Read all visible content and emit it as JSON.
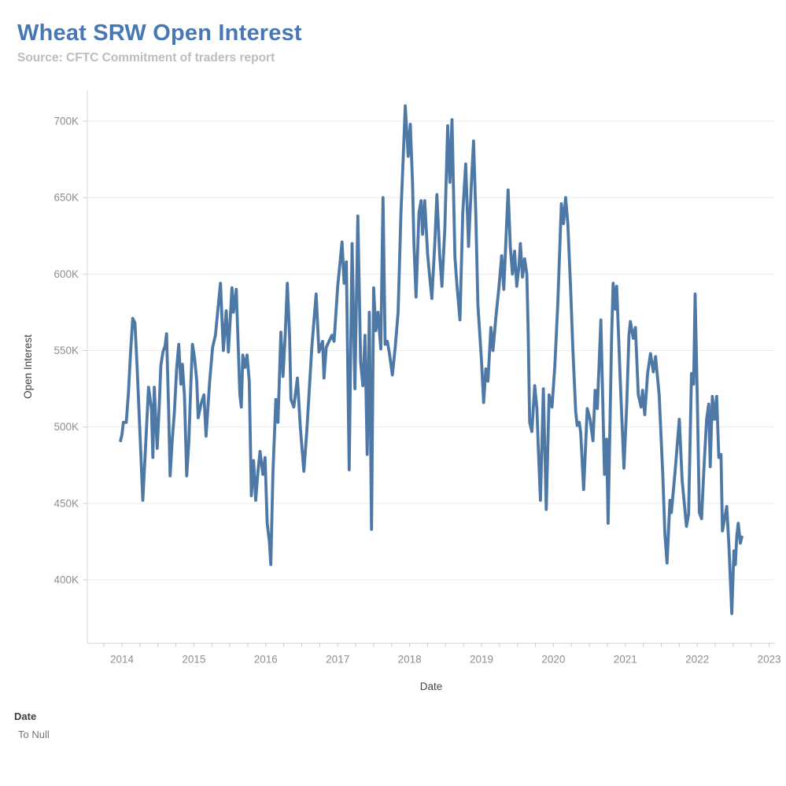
{
  "header": {
    "title": "Wheat SRW Open Interest",
    "subtitle": "Source: CFTC Commitment of traders report"
  },
  "footer": {
    "label": "Date",
    "value": "To Null"
  },
  "chart_data": {
    "type": "line",
    "title": "Wheat SRW Open Interest",
    "xlabel": "Date",
    "ylabel": "Open Interest",
    "legend": "none",
    "grid": "horizontal",
    "x_range": [
      2013.9,
      2023.08
    ],
    "ylim": [
      360000,
      720000
    ],
    "x_ticks": [
      {
        "value": 2014,
        "label": "2014"
      },
      {
        "value": 2015,
        "label": "2015"
      },
      {
        "value": 2016,
        "label": "2016"
      },
      {
        "value": 2017,
        "label": "2017"
      },
      {
        "value": 2018,
        "label": "2018"
      },
      {
        "value": 2019,
        "label": "2019"
      },
      {
        "value": 2020,
        "label": "2020"
      },
      {
        "value": 2021,
        "label": "2021"
      },
      {
        "value": 2022,
        "label": "2022"
      },
      {
        "value": 2023,
        "label": "2023"
      }
    ],
    "y_ticks": [
      {
        "value": 400000,
        "label": "400K"
      },
      {
        "value": 450000,
        "label": "450K"
      },
      {
        "value": 500000,
        "label": "500K"
      },
      {
        "value": 550000,
        "label": "550K"
      },
      {
        "value": 600000,
        "label": "600K"
      },
      {
        "value": 650000,
        "label": "650K"
      },
      {
        "value": 700000,
        "label": "700K"
      }
    ],
    "series": [
      {
        "name": "Open Interest",
        "color": "#4e79a7",
        "points": [
          [
            2013.98,
            491000
          ],
          [
            2014.0,
            495000
          ],
          [
            2014.02,
            503000
          ],
          [
            2014.06,
            503000
          ],
          [
            2014.09,
            522000
          ],
          [
            2014.12,
            549000
          ],
          [
            2014.15,
            571000
          ],
          [
            2014.18,
            568000
          ],
          [
            2014.21,
            540000
          ],
          [
            2014.25,
            497000
          ],
          [
            2014.29,
            452000
          ],
          [
            2014.33,
            489000
          ],
          [
            2014.37,
            526000
          ],
          [
            2014.41,
            512000
          ],
          [
            2014.43,
            480000
          ],
          [
            2014.45,
            526000
          ],
          [
            2014.47,
            504000
          ],
          [
            2014.49,
            486000
          ],
          [
            2014.52,
            515000
          ],
          [
            2014.54,
            540000
          ],
          [
            2014.57,
            549000
          ],
          [
            2014.6,
            553000
          ],
          [
            2014.62,
            561000
          ],
          [
            2014.65,
            510000
          ],
          [
            2014.67,
            468000
          ],
          [
            2014.7,
            492000
          ],
          [
            2014.73,
            510000
          ],
          [
            2014.76,
            538000
          ],
          [
            2014.79,
            554000
          ],
          [
            2014.82,
            528000
          ],
          [
            2014.84,
            541000
          ],
          [
            2014.87,
            520000
          ],
          [
            2014.9,
            468000
          ],
          [
            2014.93,
            490000
          ],
          [
            2014.96,
            530000
          ],
          [
            2014.98,
            554000
          ],
          [
            2015.01,
            545000
          ],
          [
            2015.04,
            530000
          ],
          [
            2015.06,
            506000
          ],
          [
            2015.1,
            515000
          ],
          [
            2015.14,
            521000
          ],
          [
            2015.17,
            494000
          ],
          [
            2015.22,
            530000
          ],
          [
            2015.26,
            552000
          ],
          [
            2015.3,
            560000
          ],
          [
            2015.33,
            575000
          ],
          [
            2015.37,
            594000
          ],
          [
            2015.41,
            550000
          ],
          [
            2015.45,
            576000
          ],
          [
            2015.48,
            549000
          ],
          [
            2015.53,
            591000
          ],
          [
            2015.55,
            575000
          ],
          [
            2015.59,
            590000
          ],
          [
            2015.64,
            521000
          ],
          [
            2015.66,
            513000
          ],
          [
            2015.68,
            547000
          ],
          [
            2015.71,
            539000
          ],
          [
            2015.74,
            547000
          ],
          [
            2015.77,
            530000
          ],
          [
            2015.8,
            455000
          ],
          [
            2015.83,
            478000
          ],
          [
            2015.86,
            452000
          ],
          [
            2015.89,
            470000
          ],
          [
            2015.92,
            484000
          ],
          [
            2015.96,
            469000
          ],
          [
            2015.99,
            480000
          ],
          [
            2016.02,
            437000
          ],
          [
            2016.05,
            425000
          ],
          [
            2016.07,
            410000
          ],
          [
            2016.1,
            470000
          ],
          [
            2016.14,
            518000
          ],
          [
            2016.17,
            503000
          ],
          [
            2016.21,
            562000
          ],
          [
            2016.24,
            533000
          ],
          [
            2016.27,
            560000
          ],
          [
            2016.3,
            594000
          ],
          [
            2016.33,
            560000
          ],
          [
            2016.35,
            518000
          ],
          [
            2016.39,
            513000
          ],
          [
            2016.44,
            532000
          ],
          [
            2016.48,
            500000
          ],
          [
            2016.53,
            471000
          ],
          [
            2016.57,
            497000
          ],
          [
            2016.6,
            520000
          ],
          [
            2016.64,
            552000
          ],
          [
            2016.7,
            587000
          ],
          [
            2016.74,
            549000
          ],
          [
            2016.79,
            556000
          ],
          [
            2016.81,
            532000
          ],
          [
            2016.84,
            552000
          ],
          [
            2016.88,
            556000
          ],
          [
            2016.92,
            560000
          ],
          [
            2016.95,
            556000
          ],
          [
            2017.0,
            592000
          ],
          [
            2017.03,
            606000
          ],
          [
            2017.06,
            621000
          ],
          [
            2017.09,
            594000
          ],
          [
            2017.12,
            608000
          ],
          [
            2017.16,
            472000
          ],
          [
            2017.2,
            620000
          ],
          [
            2017.24,
            525000
          ],
          [
            2017.28,
            638000
          ],
          [
            2017.32,
            542000
          ],
          [
            2017.35,
            527000
          ],
          [
            2017.38,
            560000
          ],
          [
            2017.41,
            482000
          ],
          [
            2017.44,
            575000
          ],
          [
            2017.47,
            433000
          ],
          [
            2017.5,
            591000
          ],
          [
            2017.53,
            563000
          ],
          [
            2017.56,
            575000
          ],
          [
            2017.6,
            551000
          ],
          [
            2017.63,
            650000
          ],
          [
            2017.66,
            554000
          ],
          [
            2017.69,
            556000
          ],
          [
            2017.72,
            548000
          ],
          [
            2017.76,
            534000
          ],
          [
            2017.8,
            552000
          ],
          [
            2017.84,
            575000
          ],
          [
            2017.88,
            640000
          ],
          [
            2017.91,
            675000
          ],
          [
            2017.94,
            710000
          ],
          [
            2017.98,
            677000
          ],
          [
            2018.01,
            698000
          ],
          [
            2018.04,
            660000
          ],
          [
            2018.06,
            620000
          ],
          [
            2018.09,
            585000
          ],
          [
            2018.13,
            640000
          ],
          [
            2018.16,
            648000
          ],
          [
            2018.18,
            626000
          ],
          [
            2018.21,
            648000
          ],
          [
            2018.25,
            613000
          ],
          [
            2018.28,
            598000
          ],
          [
            2018.31,
            584000
          ],
          [
            2018.35,
            620000
          ],
          [
            2018.38,
            652000
          ],
          [
            2018.42,
            611000
          ],
          [
            2018.45,
            592000
          ],
          [
            2018.49,
            630000
          ],
          [
            2018.53,
            697000
          ],
          [
            2018.56,
            660000
          ],
          [
            2018.59,
            701000
          ],
          [
            2018.63,
            611000
          ],
          [
            2018.66,
            592000
          ],
          [
            2018.7,
            570000
          ],
          [
            2018.74,
            640000
          ],
          [
            2018.78,
            672000
          ],
          [
            2018.82,
            618000
          ],
          [
            2018.86,
            660000
          ],
          [
            2018.89,
            687000
          ],
          [
            2018.92,
            640000
          ],
          [
            2018.95,
            580000
          ],
          [
            2019.0,
            543000
          ],
          [
            2019.03,
            516000
          ],
          [
            2019.06,
            538000
          ],
          [
            2019.09,
            530000
          ],
          [
            2019.13,
            565000
          ],
          [
            2019.16,
            550000
          ],
          [
            2019.2,
            572000
          ],
          [
            2019.24,
            590000
          ],
          [
            2019.28,
            612000
          ],
          [
            2019.31,
            590000
          ],
          [
            2019.34,
            623000
          ],
          [
            2019.37,
            655000
          ],
          [
            2019.4,
            618000
          ],
          [
            2019.43,
            600000
          ],
          [
            2019.46,
            615000
          ],
          [
            2019.49,
            592000
          ],
          [
            2019.52,
            605000
          ],
          [
            2019.54,
            620000
          ],
          [
            2019.57,
            598000
          ],
          [
            2019.6,
            610000
          ],
          [
            2019.63,
            600000
          ],
          [
            2019.65,
            560000
          ],
          [
            2019.67,
            503000
          ],
          [
            2019.7,
            497000
          ],
          [
            2019.74,
            527000
          ],
          [
            2019.77,
            512000
          ],
          [
            2019.79,
            486000
          ],
          [
            2019.82,
            452000
          ],
          [
            2019.86,
            525000
          ],
          [
            2019.9,
            446000
          ],
          [
            2019.94,
            521000
          ],
          [
            2019.98,
            513000
          ],
          [
            2020.02,
            540000
          ],
          [
            2020.06,
            580000
          ],
          [
            2020.11,
            646000
          ],
          [
            2020.14,
            633000
          ],
          [
            2020.17,
            650000
          ],
          [
            2020.2,
            633000
          ],
          [
            2020.24,
            590000
          ],
          [
            2020.27,
            551000
          ],
          [
            2020.31,
            510000
          ],
          [
            2020.33,
            501000
          ],
          [
            2020.36,
            503000
          ],
          [
            2020.38,
            496000
          ],
          [
            2020.42,
            459000
          ],
          [
            2020.47,
            512000
          ],
          [
            2020.51,
            505000
          ],
          [
            2020.55,
            491000
          ],
          [
            2020.58,
            524000
          ],
          [
            2020.61,
            512000
          ],
          [
            2020.66,
            570000
          ],
          [
            2020.71,
            469000
          ],
          [
            2020.74,
            492000
          ],
          [
            2020.76,
            437000
          ],
          [
            2020.81,
            560000
          ],
          [
            2020.83,
            594000
          ],
          [
            2020.86,
            577000
          ],
          [
            2020.88,
            592000
          ],
          [
            2020.93,
            530000
          ],
          [
            2020.98,
            473000
          ],
          [
            2021.02,
            515000
          ],
          [
            2021.05,
            560000
          ],
          [
            2021.07,
            569000
          ],
          [
            2021.11,
            558000
          ],
          [
            2021.14,
            565000
          ],
          [
            2021.18,
            521000
          ],
          [
            2021.22,
            513000
          ],
          [
            2021.24,
            524000
          ],
          [
            2021.27,
            508000
          ],
          [
            2021.31,
            535000
          ],
          [
            2021.35,
            548000
          ],
          [
            2021.39,
            536000
          ],
          [
            2021.42,
            546000
          ],
          [
            2021.47,
            521000
          ],
          [
            2021.52,
            470000
          ],
          [
            2021.55,
            430000
          ],
          [
            2021.58,
            411000
          ],
          [
            2021.62,
            452000
          ],
          [
            2021.64,
            444000
          ],
          [
            2021.69,
            470000
          ],
          [
            2021.75,
            505000
          ],
          [
            2021.79,
            465000
          ],
          [
            2021.85,
            435000
          ],
          [
            2021.88,
            443000
          ],
          [
            2021.92,
            535000
          ],
          [
            2021.95,
            528000
          ],
          [
            2021.97,
            587000
          ],
          [
            2022.0,
            520000
          ],
          [
            2022.03,
            444000
          ],
          [
            2022.06,
            440000
          ],
          [
            2022.09,
            470000
          ],
          [
            2022.13,
            505000
          ],
          [
            2022.16,
            515000
          ],
          [
            2022.18,
            474000
          ],
          [
            2022.21,
            520000
          ],
          [
            2022.24,
            505000
          ],
          [
            2022.27,
            520000
          ],
          [
            2022.3,
            480000
          ],
          [
            2022.33,
            482000
          ],
          [
            2022.35,
            432000
          ],
          [
            2022.41,
            448000
          ],
          [
            2022.44,
            423000
          ],
          [
            2022.48,
            378000
          ],
          [
            2022.51,
            419000
          ],
          [
            2022.53,
            410000
          ],
          [
            2022.55,
            429000
          ],
          [
            2022.57,
            437000
          ],
          [
            2022.6,
            424000
          ],
          [
            2022.62,
            428000
          ]
        ]
      }
    ]
  }
}
